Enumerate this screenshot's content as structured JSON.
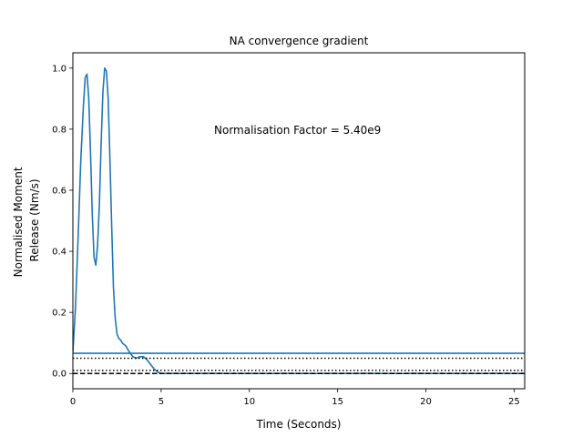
{
  "chart_data": {
    "type": "line",
    "title": "NA convergence gradient",
    "xlabel": "Time (Seconds)",
    "ylabel_lines": [
      "Normalised Moment",
      "Release (Nm/s)"
    ],
    "xlim": [
      0,
      25.6
    ],
    "ylim": [
      -0.05,
      1.05
    ],
    "xticks": [
      0,
      5,
      10,
      15,
      20,
      25
    ],
    "yticks": [
      0.0,
      0.2,
      0.4,
      0.6,
      0.8,
      1.0
    ],
    "xtick_labels": [
      "0",
      "5",
      "10",
      "15",
      "20",
      "25"
    ],
    "ytick_labels": [
      "0.0",
      "0.2",
      "0.4",
      "0.6",
      "0.8",
      "1.0"
    ],
    "grid": false,
    "annotation": {
      "text": "Normalisation Factor = 5.40e9",
      "x": 8.0,
      "y": 0.8
    },
    "series": [
      {
        "color": "#1f77b4",
        "style": "solid",
        "x": [
          0.0,
          0.15,
          0.3,
          0.45,
          0.6,
          0.7,
          0.8,
          0.9,
          1.0,
          1.1,
          1.2,
          1.3,
          1.4,
          1.5,
          1.6,
          1.7,
          1.8,
          1.9,
          2.0,
          2.1,
          2.2,
          2.3,
          2.4,
          2.5,
          2.6,
          2.7,
          2.8,
          3.0,
          3.2,
          3.4,
          3.6,
          3.8,
          4.0,
          4.2,
          4.4,
          4.6,
          4.8,
          5.0,
          5.2,
          5.5,
          6.0,
          8.0,
          10.0,
          15.0,
          20.0,
          25.6
        ],
        "y": [
          0.07,
          0.22,
          0.45,
          0.7,
          0.88,
          0.97,
          0.98,
          0.9,
          0.72,
          0.52,
          0.38,
          0.355,
          0.42,
          0.55,
          0.75,
          0.92,
          1.0,
          0.99,
          0.9,
          0.7,
          0.48,
          0.28,
          0.18,
          0.13,
          0.115,
          0.11,
          0.1,
          0.09,
          0.07,
          0.055,
          0.05,
          0.055,
          0.055,
          0.045,
          0.03,
          0.015,
          0.005,
          0.0,
          0.0,
          0.0,
          0.0,
          0.0,
          0.0,
          0.0,
          0.0,
          0.0
        ]
      },
      {
        "color": "#1f77b4",
        "style": "solid",
        "x": [
          0,
          25.6
        ],
        "y": [
          0.066,
          0.066
        ]
      },
      {
        "color": "#000000",
        "style": "dotted",
        "x": [
          0,
          25.6
        ],
        "y": [
          0.05,
          0.05
        ]
      },
      {
        "color": "#000000",
        "style": "dashed",
        "x": [
          0,
          25.6
        ],
        "y": [
          0.0,
          0.0
        ]
      },
      {
        "color": "#000000",
        "style": "dotted",
        "x": [
          0,
          25.6
        ],
        "y": [
          0.01,
          0.01
        ]
      }
    ]
  }
}
